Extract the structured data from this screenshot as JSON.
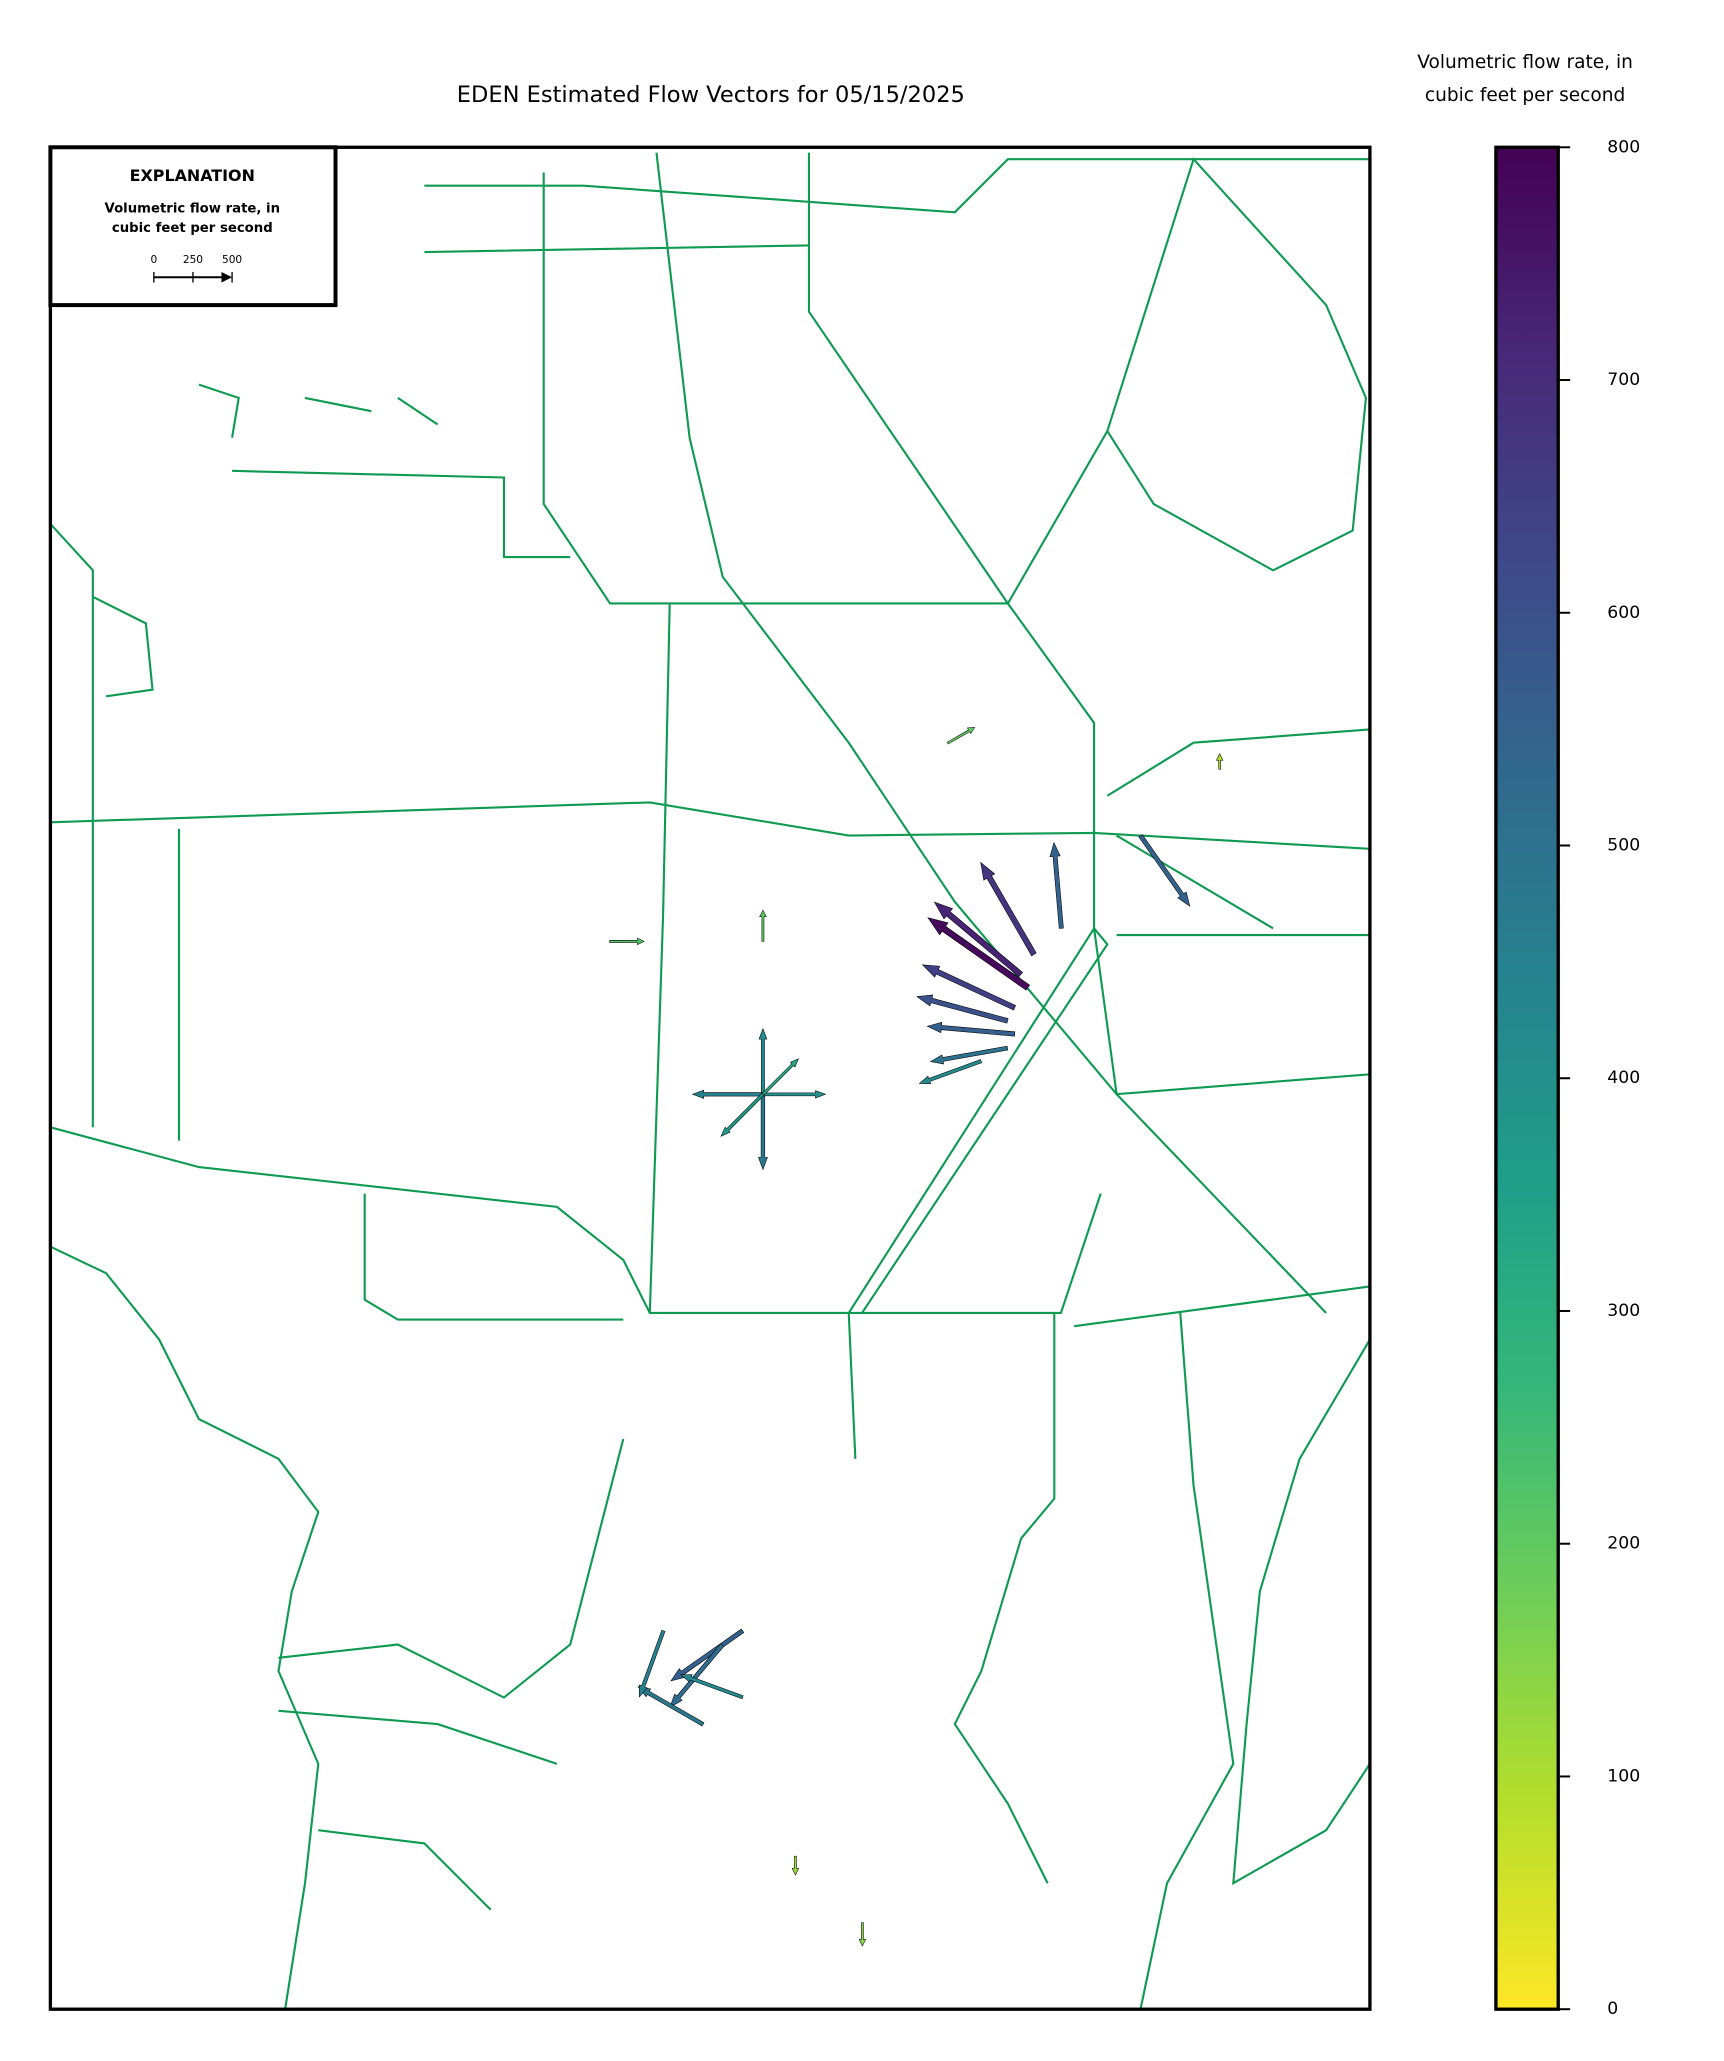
{
  "chart_data": {
    "type": "quiver",
    "title": "EDEN Estimated Flow Vectors for 05/15/2025",
    "colorbar_label": [
      "Volumetric flow rate, in",
      "cubic feet per second"
    ],
    "colormap": "viridis_r",
    "clim": [
      0,
      800
    ],
    "cticks": [
      0,
      100,
      200,
      300,
      400,
      500,
      600,
      700,
      800
    ],
    "explanation_title": "EXPLANATION",
    "explanation_label": [
      "Volumetric flow rate, in",
      "cubic feet per second"
    ],
    "key_ticks": [
      0,
      250,
      500
    ],
    "xlim": [
      -81.45,
      -80.15
    ],
    "ylim": [
      25.1,
      26.95
    ],
    "vectors": [
      {
        "lon": -80.487,
        "lat": 26.115,
        "direction": 145,
        "value": 780
      },
      {
        "lon": -80.494,
        "lat": 26.128,
        "direction": 140,
        "value": 720
      },
      {
        "lon": -80.5,
        "lat": 26.095,
        "direction": 155,
        "value": 650
      },
      {
        "lon": -80.507,
        "lat": 26.082,
        "direction": 165,
        "value": 600
      },
      {
        "lon": -80.5,
        "lat": 26.069,
        "direction": 175,
        "value": 560
      },
      {
        "lon": -80.507,
        "lat": 26.055,
        "direction": 190,
        "value": 500
      },
      {
        "lon": -80.533,
        "lat": 26.042,
        "direction": 200,
        "value": 420
      },
      {
        "lon": -80.481,
        "lat": 26.148,
        "direction": 120,
        "value": 680
      },
      {
        "lon": -80.454,
        "lat": 26.174,
        "direction": 95,
        "value": 550
      },
      {
        "lon": -80.376,
        "lat": 26.266,
        "direction": -55,
        "value": 550
      },
      {
        "lon": -80.748,
        "lat": 26.009,
        "direction": 90,
        "value": 420
      },
      {
        "lon": -80.748,
        "lat": 26.009,
        "direction": 270,
        "value": 480
      },
      {
        "lon": -80.748,
        "lat": 26.009,
        "direction": 0,
        "value": 400
      },
      {
        "lon": -80.748,
        "lat": 26.009,
        "direction": 180,
        "value": 450
      },
      {
        "lon": -80.748,
        "lat": 26.009,
        "direction": 225,
        "value": 380
      },
      {
        "lon": -80.748,
        "lat": 26.009,
        "direction": 45,
        "value": 320
      },
      {
        "lon": -80.768,
        "lat": 25.476,
        "direction": 215,
        "value": 560
      },
      {
        "lon": -80.788,
        "lat": 25.462,
        "direction": 230,
        "value": 520
      },
      {
        "lon": -80.807,
        "lat": 25.383,
        "direction": 150,
        "value": 480
      },
      {
        "lon": -80.846,
        "lat": 25.476,
        "direction": 250,
        "value": 450
      },
      {
        "lon": -80.768,
        "lat": 25.41,
        "direction": 160,
        "value": 420
      },
      {
        "lon": -80.566,
        "lat": 26.358,
        "direction": 30,
        "value": 200
      },
      {
        "lon": -80.899,
        "lat": 26.161,
        "direction": 0,
        "value": 220
      },
      {
        "lon": -80.748,
        "lat": 26.161,
        "direction": 90,
        "value": 200
      },
      {
        "lon": -80.716,
        "lat": 25.252,
        "direction": 270,
        "value": 120
      },
      {
        "lon": -80.298,
        "lat": 26.332,
        "direction": 90,
        "value": 100
      },
      {
        "lon": -80.65,
        "lat": 25.186,
        "direction": -90,
        "value": 150
      }
    ]
  }
}
